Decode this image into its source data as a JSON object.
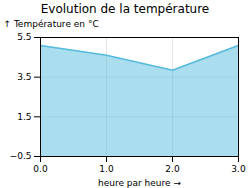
{
  "chart_data": {
    "type": "area",
    "title": "Evolution de la température",
    "xlabel": "heure par heure",
    "ylabel": "Température en °C",
    "x": [
      0,
      1,
      2,
      3
    ],
    "values": [
      5.1,
      4.6,
      3.85,
      5.1
    ],
    "color": "#55bbdd",
    "xlim": [
      0,
      3
    ],
    "ylim": [
      -0.5,
      5.5
    ],
    "xticks": [
      0,
      1,
      2,
      3
    ],
    "yticks": [
      -0.5,
      1.5,
      3.5,
      5.5
    ],
    "grid": true
  }
}
